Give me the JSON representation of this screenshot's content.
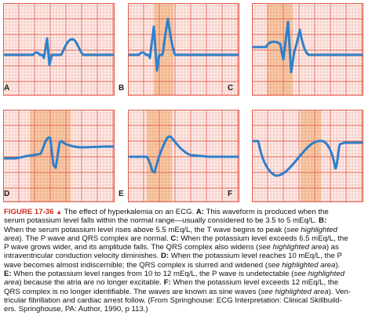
{
  "panels": [
    {
      "label": "A"
    },
    {
      "label": "B"
    },
    {
      "label": "C"
    },
    {
      "label": "D"
    },
    {
      "label": "E"
    },
    {
      "label": "F"
    }
  ],
  "colors": {
    "grid": "#e25a4b",
    "paper": "#fdeeea",
    "highlight": "#f6c79a",
    "waveform": "#2f7fc9",
    "figure_label": "#d12a1e"
  },
  "caption": {
    "figure_label": "FIGURE 17-36",
    "marker": "▲",
    "lines": [
      [
        {
          "t": " The effect of hyperkalemia on an ECG. "
        },
        {
          "t": "A:",
          "b": true
        },
        {
          "t": " This waveform is produced when the"
        }
      ],
      [
        {
          "t": "serum potassium level falls within the normal range—usually considered to be 3.5 to 5 mEq/L. "
        },
        {
          "t": "B:",
          "b": true
        }
      ],
      [
        {
          "t": "When the serum potassium level rises above 5.5 mEq/L, the T wave begins to peak ("
        },
        {
          "t": "see highlighted",
          "i": true
        }
      ],
      [
        {
          "t": "area",
          "i": true
        },
        {
          "t": "). The P wave and QRS complex are normal. "
        },
        {
          "t": "C:",
          "b": true
        },
        {
          "t": " When the potassium level exceeds 6.5 mEq/L, the"
        }
      ],
      [
        {
          "t": "P wave grows wider, and its amplitude falls. The QRS complex also widens ("
        },
        {
          "t": "see highlighted area",
          "i": true
        },
        {
          "t": ") as"
        }
      ],
      [
        {
          "t": "intraventricular conduction velocity diminishes. "
        },
        {
          "t": "D:",
          "b": true
        },
        {
          "t": " When the potassium level reaches 10 mEq/L, the P"
        }
      ],
      [
        {
          "t": "wave becomes almost indiscernible; the QRS complex is slurred and widened ("
        },
        {
          "t": "see highlighted area",
          "i": true
        },
        {
          "t": ")."
        }
      ],
      [
        {
          "t": "E:",
          "b": true
        },
        {
          "t": " When the potassium level ranges from 10 to 12 mEq/L, the P wave is undetectable ("
        },
        {
          "t": "see highlighted",
          "i": true
        }
      ],
      [
        {
          "t": "area",
          "i": true
        },
        {
          "t": ") because the atria are no longer excitable. "
        },
        {
          "t": "F:",
          "b": true
        },
        {
          "t": " When the potassium level exceeds 12 mEq/L, the"
        }
      ],
      [
        {
          "t": "QRS complex is no longer identifiable. The waves are known as sine waves ("
        },
        {
          "t": "see highlighted area",
          "i": true
        },
        {
          "t": "). Ven-"
        }
      ],
      [
        {
          "t": "tricular fibrillation and cardiac arrest follow. (From Springhouse: ECG Interpretation: Clinical Skillbuild-"
        }
      ],
      [
        {
          "t": "ers. Springhouse, PA: Author, 1990, p 113.)"
        }
      ]
    ]
  }
}
